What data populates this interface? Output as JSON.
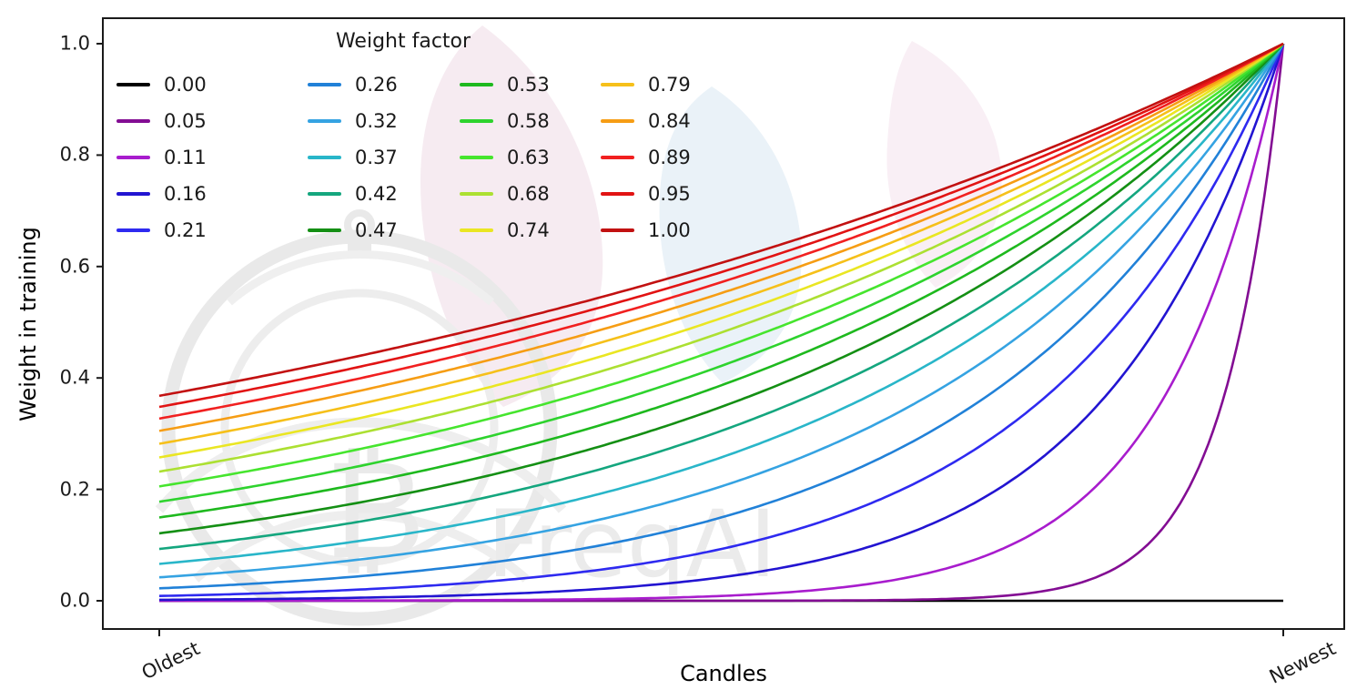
{
  "chart_data": {
    "type": "line",
    "title": "",
    "xlabel": "Candles",
    "ylabel": "Weight in training",
    "x_tick_labels": [
      "Oldest",
      "Newest"
    ],
    "y_tick_labels": [
      "0.0",
      "0.2",
      "0.4",
      "0.6",
      "0.8",
      "1.0"
    ],
    "ylim": [
      -0.05,
      1.05
    ],
    "grid": false,
    "legend": {
      "title": "Weight factor",
      "ncol": 4,
      "location": "upper left"
    },
    "formula": "weight = exp(-(1 - x) / factor) for x in [0,1]; factor = 0 gives weight = 0",
    "series": [
      {
        "label": "0.00",
        "factor": 0.0,
        "color": "#000000"
      },
      {
        "label": "0.05",
        "factor": 0.0526,
        "color": "#830d93"
      },
      {
        "label": "0.11",
        "factor": 0.1053,
        "color": "#a81ccd"
      },
      {
        "label": "0.16",
        "factor": 0.1579,
        "color": "#2214d1"
      },
      {
        "label": "0.21",
        "factor": 0.2105,
        "color": "#2e2af0"
      },
      {
        "label": "0.26",
        "factor": 0.2632,
        "color": "#2181d8"
      },
      {
        "label": "0.32",
        "factor": 0.3158,
        "color": "#35a3e2"
      },
      {
        "label": "0.37",
        "factor": 0.3684,
        "color": "#29b6c9"
      },
      {
        "label": "0.42",
        "factor": 0.4211,
        "color": "#14a67e"
      },
      {
        "label": "0.47",
        "factor": 0.4737,
        "color": "#148f14"
      },
      {
        "label": "0.53",
        "factor": 0.5263,
        "color": "#1eb91e"
      },
      {
        "label": "0.58",
        "factor": 0.5789,
        "color": "#2ed32e"
      },
      {
        "label": "0.63",
        "factor": 0.6316,
        "color": "#46e52e"
      },
      {
        "label": "0.68",
        "factor": 0.6842,
        "color": "#ace032"
      },
      {
        "label": "0.74",
        "factor": 0.7368,
        "color": "#eae622"
      },
      {
        "label": "0.79",
        "factor": 0.7895,
        "color": "#f6c01a"
      },
      {
        "label": "0.84",
        "factor": 0.8421,
        "color": "#f69d14"
      },
      {
        "label": "0.89",
        "factor": 0.8947,
        "color": "#f12020"
      },
      {
        "label": "0.95",
        "factor": 0.9474,
        "color": "#e11313"
      },
      {
        "label": "1.00",
        "factor": 1.0,
        "color": "#c21111"
      }
    ]
  },
  "watermark": {
    "text": "FreqAI",
    "symbol": "₿"
  }
}
